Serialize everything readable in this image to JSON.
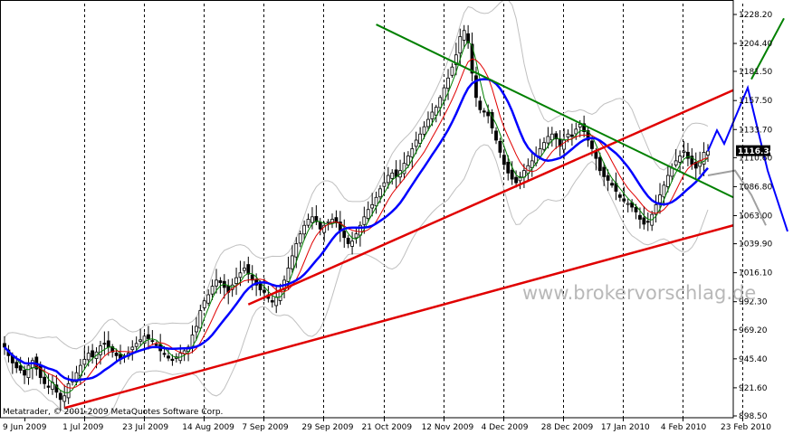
{
  "chart_data": {
    "type": "candlestick",
    "instrument_price": "1116.34",
    "y_ticks": [
      "1228.20",
      "1204.40",
      "1181.50",
      "1157.50",
      "1133.70",
      "1110.60",
      "1086.80",
      "1063.00",
      "1039.90",
      "1016.10",
      "992.30",
      "969.20",
      "945.40",
      "921.60",
      "898.50"
    ],
    "ylim": [
      898.5,
      1228.2
    ],
    "x_ticks": [
      "9 Jun 2009",
      "1 Jul 2009",
      "23 Jul 2009",
      "14 Aug 2009",
      "7 Sep 2009",
      "29 Sep 2009",
      "21 Oct 2009",
      "12 Nov 2009",
      "4 Dec 2009",
      "28 Dec 2009",
      "17 Jan 2010",
      "4 Feb 2010",
      "23 Feb 2010"
    ],
    "x_range": [
      "2009-06-09",
      "2010-03-01"
    ],
    "grid": "vertical dashed",
    "close": [
      955,
      948,
      942,
      938,
      936,
      932,
      940,
      944,
      937,
      930,
      925,
      922,
      926,
      918,
      912,
      915,
      925,
      928,
      934,
      940,
      945,
      950,
      947,
      951,
      956,
      958,
      955,
      951,
      948,
      945,
      947,
      950,
      955,
      958,
      961,
      964,
      962,
      960,
      957,
      952,
      949,
      946,
      944,
      947,
      950,
      952,
      955,
      965,
      972,
      985,
      993,
      998,
      1005,
      1010,
      1008,
      1004,
      1000,
      1006,
      1012,
      1016,
      1020,
      1015,
      1010,
      1006,
      1002,
      1000,
      995,
      992,
      996,
      1002,
      1010,
      1020,
      1030,
      1040,
      1048,
      1055,
      1060,
      1062,
      1058,
      1052,
      1055,
      1058,
      1060,
      1057,
      1051,
      1045,
      1040,
      1042,
      1048,
      1055,
      1062,
      1068,
      1072,
      1078,
      1085,
      1090,
      1096,
      1098,
      1095,
      1100,
      1106,
      1112,
      1118,
      1125,
      1130,
      1136,
      1142,
      1148,
      1152,
      1160,
      1168,
      1176,
      1185,
      1195,
      1210,
      1215,
      1205,
      1180,
      1160,
      1150,
      1148,
      1145,
      1135,
      1125,
      1115,
      1105,
      1098,
      1093,
      1090,
      1095,
      1100,
      1104,
      1108,
      1112,
      1118,
      1123,
      1128,
      1130,
      1126,
      1120,
      1125,
      1130,
      1128,
      1134,
      1138,
      1132,
      1125,
      1118,
      1110,
      1100,
      1095,
      1092,
      1088,
      1083,
      1078,
      1075,
      1073,
      1070,
      1066,
      1060,
      1056,
      1058,
      1064,
      1072,
      1080,
      1088,
      1096,
      1102,
      1108,
      1112,
      1116,
      1110,
      1105,
      1102,
      1108,
      1115,
      1116
    ],
    "overlays": {
      "moving_averages": [
        "blue",
        "red",
        "green"
      ],
      "bollinger_bands": "gray",
      "trendlines": "red rising, green falling, blue projection"
    },
    "watermark": "www.brokervorschlag.de",
    "copyright": "Metatrader, © 2001-2009 MetaQuotes Software Corp."
  },
  "colors": {
    "background": "#ffffff",
    "candle": "#000000",
    "ma_fast": "#008000",
    "ma_medium": "#e00000",
    "ma_slow": "#0000ff",
    "bands": "#c0c0c0",
    "trend_red": "#e00000",
    "trend_green": "#008000",
    "projection_blue": "#0000ff",
    "projection_gray": "#a0a0a0",
    "projection_green": "#008000"
  }
}
